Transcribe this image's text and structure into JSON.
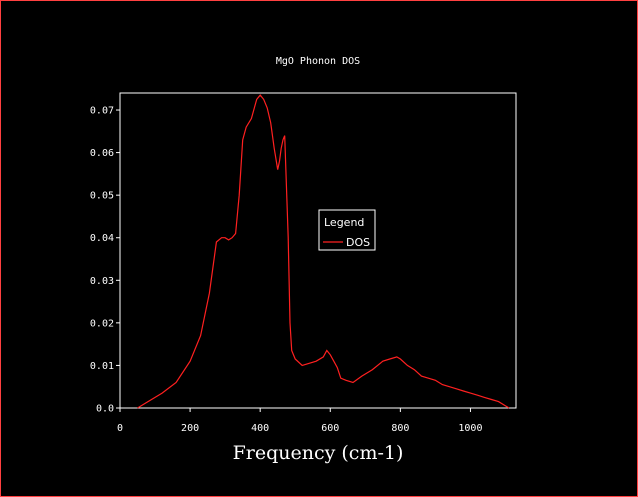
{
  "chart_data": {
    "type": "line",
    "title": "MgO Phonon DOS",
    "xlabel": "Frequency (cm-1)",
    "ylabel": "",
    "xlim": [
      0,
      1130
    ],
    "ylim": [
      0,
      0.074
    ],
    "xticks": [
      0,
      200,
      400,
      600,
      800,
      1000
    ],
    "xtick_labels": [
      "0",
      "200",
      "400",
      "600",
      "800",
      "1000"
    ],
    "yticks": [
      0,
      0.01,
      0.02,
      0.03,
      0.04,
      0.05,
      0.06,
      0.07
    ],
    "ytick_labels": [
      "0.0",
      "0.01",
      "0.02",
      "0.03",
      "0.04",
      "0.05",
      "0.06",
      "0.07"
    ],
    "grid": false,
    "legend": {
      "title": "Legend",
      "placement": "center-right"
    },
    "series": [
      {
        "name": "DOS",
        "color": "#ff2020",
        "x": [
          50,
          80,
          120,
          160,
          200,
          230,
          255,
          275,
          290,
          300,
          310,
          320,
          330,
          340,
          350,
          360,
          375,
          390,
          400,
          410,
          420,
          430,
          440,
          450,
          455,
          460,
          465,
          470,
          480,
          485,
          490,
          500,
          520,
          540,
          560,
          580,
          590,
          600,
          610,
          620,
          630,
          645,
          665,
          690,
          720,
          750,
          770,
          790,
          800,
          820,
          840,
          860,
          880,
          900,
          920,
          940,
          960,
          980,
          1000,
          1020,
          1040,
          1060,
          1080,
          1100,
          1110
        ],
        "y": [
          0.0,
          0.0015,
          0.0035,
          0.006,
          0.011,
          0.017,
          0.027,
          0.039,
          0.04,
          0.04,
          0.0395,
          0.04,
          0.041,
          0.05,
          0.063,
          0.066,
          0.068,
          0.0725,
          0.0735,
          0.0725,
          0.0705,
          0.067,
          0.061,
          0.056,
          0.058,
          0.061,
          0.063,
          0.064,
          0.04,
          0.02,
          0.0135,
          0.0115,
          0.01,
          0.0105,
          0.011,
          0.012,
          0.0135,
          0.0125,
          0.011,
          0.0095,
          0.007,
          0.0065,
          0.006,
          0.0075,
          0.009,
          0.011,
          0.0115,
          0.012,
          0.0115,
          0.01,
          0.009,
          0.0075,
          0.007,
          0.0065,
          0.0055,
          0.005,
          0.0045,
          0.004,
          0.0035,
          0.003,
          0.0025,
          0.002,
          0.0015,
          0.0005,
          0.0
        ]
      }
    ]
  }
}
